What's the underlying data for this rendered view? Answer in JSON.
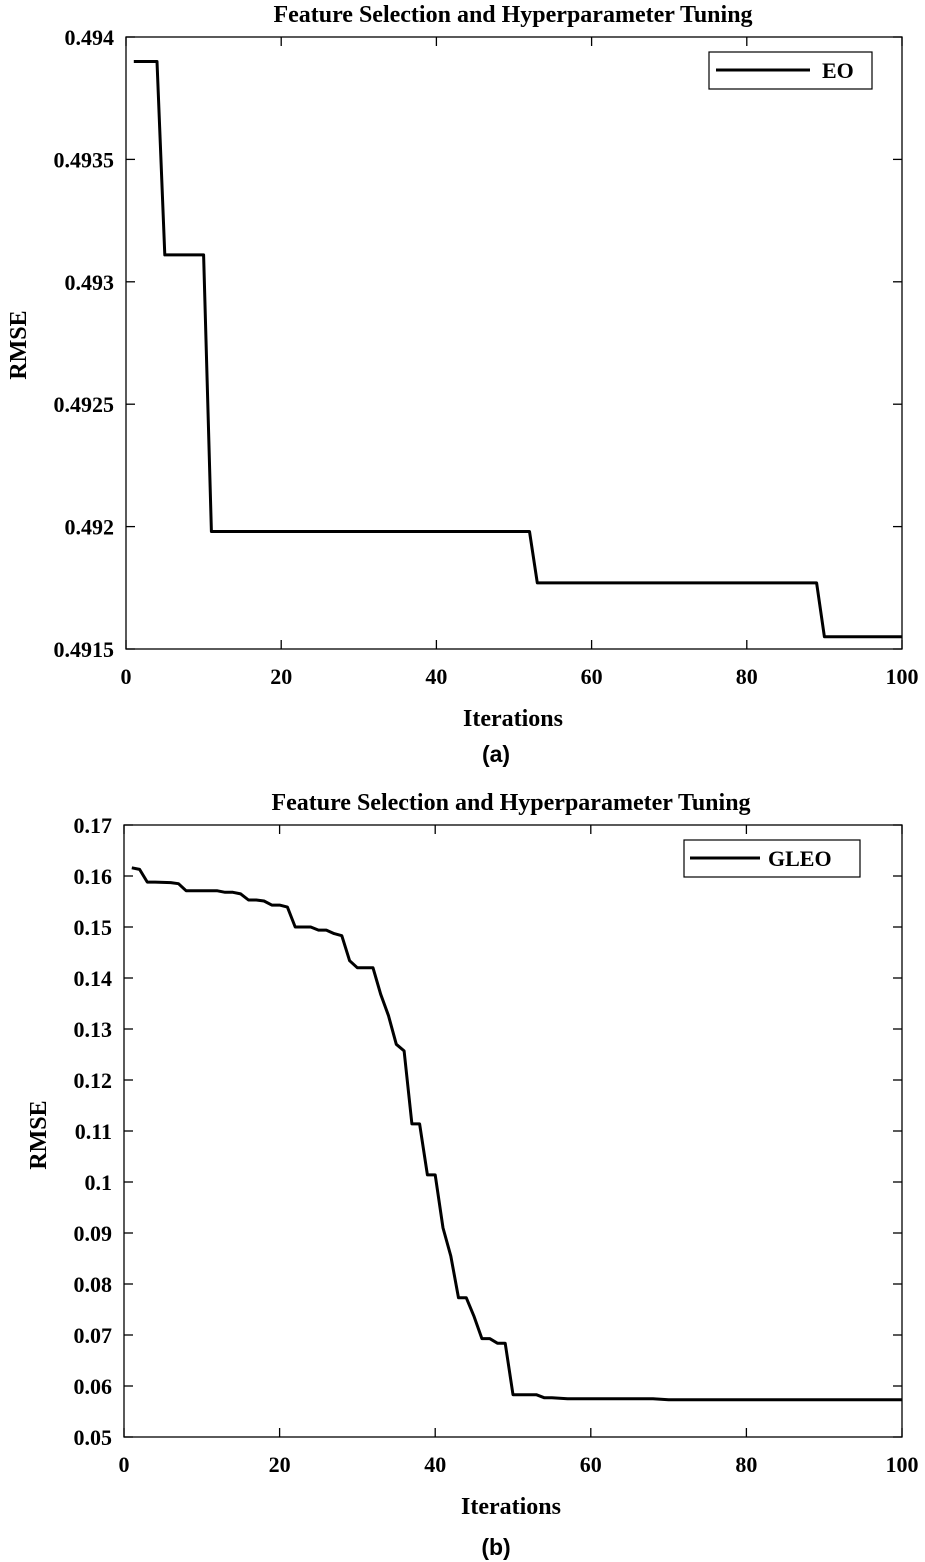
{
  "chart_data": [
    {
      "type": "line",
      "title": "Feature Selection and Hyperparameter Tuning",
      "xlabel": "Iterations",
      "ylabel": "RMSE",
      "caption": "(a)",
      "xlim": [
        0,
        100
      ],
      "ylim": [
        0.4915,
        0.494
      ],
      "xticks": [
        0,
        20,
        40,
        60,
        80,
        100
      ],
      "xtick_labels": [
        "0",
        "20",
        "40",
        "60",
        "80",
        "100"
      ],
      "yticks": [
        0.4915,
        0.492,
        0.4925,
        0.493,
        0.4935,
        0.494
      ],
      "ytick_labels": [
        "0.4915",
        "0.492",
        "0.4925",
        "0.493",
        "0.4935",
        "0.494"
      ],
      "legend_position": "top-right",
      "grid": false,
      "series": [
        {
          "name": "EO",
          "color": "#000000",
          "x": [
            1,
            4,
            5,
            10,
            11,
            52,
            53,
            89,
            90,
            100
          ],
          "y": [
            0.4939,
            0.4939,
            0.49311,
            0.49311,
            0.49198,
            0.49198,
            0.49177,
            0.49177,
            0.49155,
            0.49155
          ]
        }
      ]
    },
    {
      "type": "line",
      "title": "Feature Selection and Hyperparameter Tuning",
      "xlabel": "Iterations",
      "ylabel": "RMSE",
      "caption": "(b)",
      "xlim": [
        0,
        100
      ],
      "ylim": [
        0.05,
        0.17
      ],
      "xticks": [
        0,
        20,
        40,
        60,
        80,
        100
      ],
      "xtick_labels": [
        "0",
        "20",
        "40",
        "60",
        "80",
        "100"
      ],
      "yticks": [
        0.05,
        0.06,
        0.07,
        0.08,
        0.09,
        0.1,
        0.11,
        0.12,
        0.13,
        0.14,
        0.15,
        0.16,
        0.17
      ],
      "ytick_labels": [
        "0.05",
        "0.06",
        "0.07",
        "0.08",
        "0.09",
        "0.1",
        "0.11",
        "0.12",
        "0.13",
        "0.14",
        "0.15",
        "0.16",
        "0.17"
      ],
      "legend_position": "top-right",
      "grid": false,
      "series": [
        {
          "name": "GLEO",
          "color": "#000000",
          "x": [
            1,
            2,
            3,
            4,
            6,
            7,
            8,
            10,
            12,
            13,
            14,
            15,
            16,
            17,
            18,
            19,
            20,
            21,
            22,
            23,
            24,
            25,
            26,
            27,
            28,
            29,
            30,
            31,
            32,
            33,
            34,
            35,
            36,
            37,
            38,
            39,
            40,
            41,
            42,
            43,
            44,
            45,
            46,
            47,
            48,
            49,
            50,
            51,
            52,
            53,
            54,
            55,
            57,
            58,
            60,
            65,
            68,
            70,
            75,
            80,
            90,
            100
          ],
          "y": [
            0.1616,
            0.1613,
            0.1588,
            0.1588,
            0.1587,
            0.1585,
            0.1571,
            0.1571,
            0.1571,
            0.1568,
            0.1568,
            0.1565,
            0.1553,
            0.1553,
            0.1551,
            0.1543,
            0.1543,
            0.1539,
            0.15,
            0.15,
            0.15,
            0.1494,
            0.1494,
            0.1487,
            0.1483,
            0.1434,
            0.142,
            0.142,
            0.142,
            0.1368,
            0.1326,
            0.127,
            0.1257,
            0.1114,
            0.1114,
            0.1014,
            0.1014,
            0.091,
            0.0855,
            0.0773,
            0.0773,
            0.0736,
            0.0693,
            0.0693,
            0.0684,
            0.0684,
            0.0583,
            0.0583,
            0.0583,
            0.0583,
            0.0577,
            0.0577,
            0.0575,
            0.0575,
            0.0575,
            0.0575,
            0.0575,
            0.0573,
            0.0573,
            0.0573,
            0.0573,
            0.0573
          ]
        }
      ]
    }
  ]
}
